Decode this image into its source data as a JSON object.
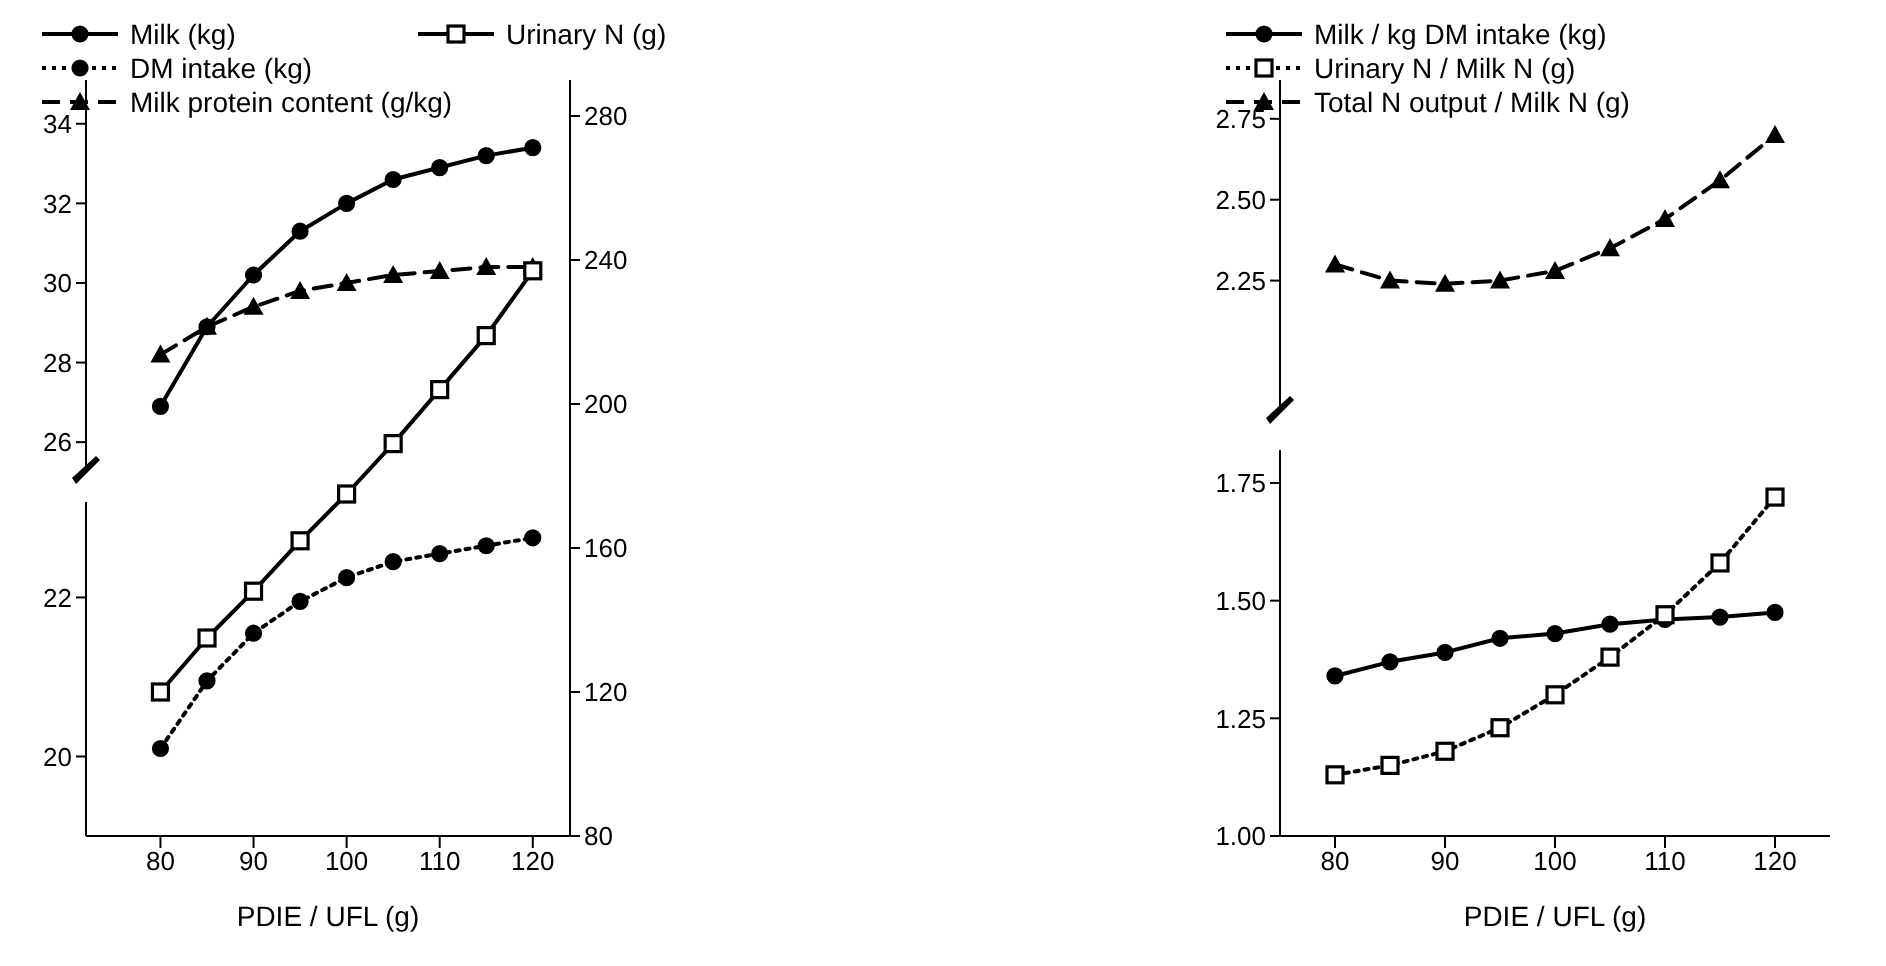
{
  "chart_data": [
    {
      "type": "line",
      "x": [
        80,
        85,
        90,
        95,
        100,
        105,
        110,
        115,
        120
      ],
      "ylim": [
        25.3,
        35.1
      ],
      "yticks": [
        26,
        28,
        30,
        32,
        34
      ],
      "tick_labels": "y",
      "legend": "top",
      "series": [
        {
          "name": "Milk (kg)",
          "color": "#000000",
          "marker": "circle",
          "line_style": "solid",
          "values": [
            26.9,
            28.9,
            30.2,
            31.3,
            32.0,
            32.6,
            32.9,
            33.2,
            33.4
          ]
        },
        {
          "name": "Milk protein content (g/kg)",
          "color": "#000000",
          "marker": "triangle",
          "line_style": "dashed",
          "values": [
            28.2,
            28.9,
            29.4,
            29.8,
            30.0,
            30.2,
            30.3,
            30.4,
            30.4
          ]
        }
      ]
    },
    {
      "type": "line",
      "x": [
        80,
        85,
        90,
        95,
        100,
        105,
        110,
        115,
        120
      ],
      "ylim": [
        19,
        23.2
      ],
      "yticks": [
        20,
        22
      ],
      "tick_labels": "y",
      "legend": "top",
      "series": [
        {
          "name": "DM intake (kg)",
          "color": "#000000",
          "marker": "circle",
          "line_style": "dotted",
          "values": [
            20.1,
            20.95,
            21.55,
            21.95,
            22.25,
            22.45,
            22.55,
            22.65,
            22.75
          ]
        }
      ]
    },
    {
      "type": "line",
      "xlabel": "PDIE / UFL (g)",
      "x": [
        80,
        85,
        90,
        95,
        100,
        105,
        110,
        115,
        120
      ],
      "xlim": [
        72,
        124
      ],
      "xticks": [
        80,
        90,
        100,
        110,
        120
      ],
      "y2lim": [
        80,
        290
      ],
      "y2ticks": [
        80,
        120,
        160,
        200,
        240,
        280
      ],
      "legend": "top",
      "series": [
        {
          "name": "Urinary N (g)",
          "color": "#000000",
          "axis": "y2",
          "marker": "square",
          "line_style": "solid",
          "values": [
            120,
            135,
            148,
            162,
            175,
            189,
            204,
            219,
            237
          ]
        }
      ]
    },
    {
      "type": "line",
      "x": [
        80,
        85,
        90,
        95,
        100,
        105,
        110,
        115,
        120
      ],
      "ylim": [
        1.85,
        2.87
      ],
      "yticks": [
        {
          "value": 2.25,
          "label": "2.25"
        },
        {
          "value": 2.5,
          "label": "2.50"
        },
        {
          "value": 2.75,
          "label": "2.75"
        }
      ],
      "tick_labels": "y",
      "legend": "top",
      "series": [
        {
          "name": "Total N output / Milk N (g)",
          "color": "#000000",
          "marker": "triangle",
          "line_style": "dashed",
          "values": [
            2.3,
            2.25,
            2.24,
            2.25,
            2.28,
            2.35,
            2.44,
            2.56,
            2.7
          ]
        }
      ]
    },
    {
      "type": "line",
      "xlabel": "PDIE / UFL (g)",
      "x": [
        80,
        85,
        90,
        95,
        100,
        105,
        110,
        115,
        120
      ],
      "xlim": [
        75,
        125
      ],
      "xticks": [
        80,
        90,
        100,
        110,
        120
      ],
      "ylim": [
        1.0,
        1.82
      ],
      "yticks": [
        {
          "value": 1.0,
          "label": "1.00"
        },
        {
          "value": 1.25,
          "label": "1.25"
        },
        {
          "value": 1.5,
          "label": "1.50"
        },
        {
          "value": 1.75,
          "label": "1.75"
        }
      ],
      "legend": "top",
      "series": [
        {
          "name": "Milk / kg DM intake (kg)",
          "color": "#000000",
          "marker": "circle",
          "line_style": "solid",
          "values": [
            1.34,
            1.37,
            1.39,
            1.42,
            1.43,
            1.45,
            1.46,
            1.465,
            1.475
          ]
        },
        {
          "name": "Urinary N / Milk N (g)",
          "color": "#000000",
          "marker": "square",
          "line_style": "dotted",
          "values": [
            1.13,
            1.15,
            1.18,
            1.23,
            1.3,
            1.38,
            1.47,
            1.58,
            1.72
          ]
        }
      ]
    }
  ]
}
